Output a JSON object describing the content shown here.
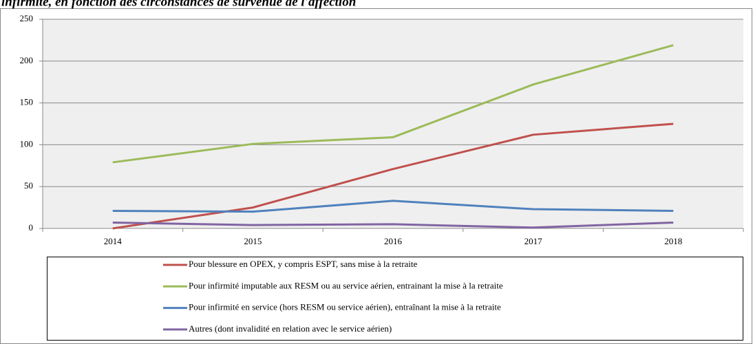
{
  "chart_data": {
    "type": "line",
    "title": "infirmité, en fonction des circonstances de survenue de l'affection",
    "categories": [
      "2014",
      "2015",
      "2016",
      "2017",
      "2018"
    ],
    "series": [
      {
        "name": "Pour blessure en OPEX, y compris ESPT, sans mise à la retraite",
        "color": "#c0504d",
        "values": [
          0,
          25,
          71,
          112,
          125
        ]
      },
      {
        "name": "Pour infirmité imputable aux RESM ou au service aérien, entrainant la mise à la retraite",
        "color": "#9bbb59",
        "values": [
          79,
          101,
          109,
          172,
          219
        ]
      },
      {
        "name": "Pour infirmité en service (hors RESM ou service aérien), entraînant la mise à la retraite",
        "color": "#4f81bd",
        "values": [
          21,
          20,
          33,
          23,
          21
        ]
      },
      {
        "name": "Autres (dont invalidité en relation avec le service aérien)",
        "color": "#8064a2",
        "values": [
          7,
          4,
          5,
          1,
          7
        ]
      }
    ],
    "ylim": [
      0,
      250
    ],
    "yticks": [
      0,
      50,
      100,
      150,
      200,
      250
    ],
    "grid": true,
    "legend": "bottom"
  }
}
